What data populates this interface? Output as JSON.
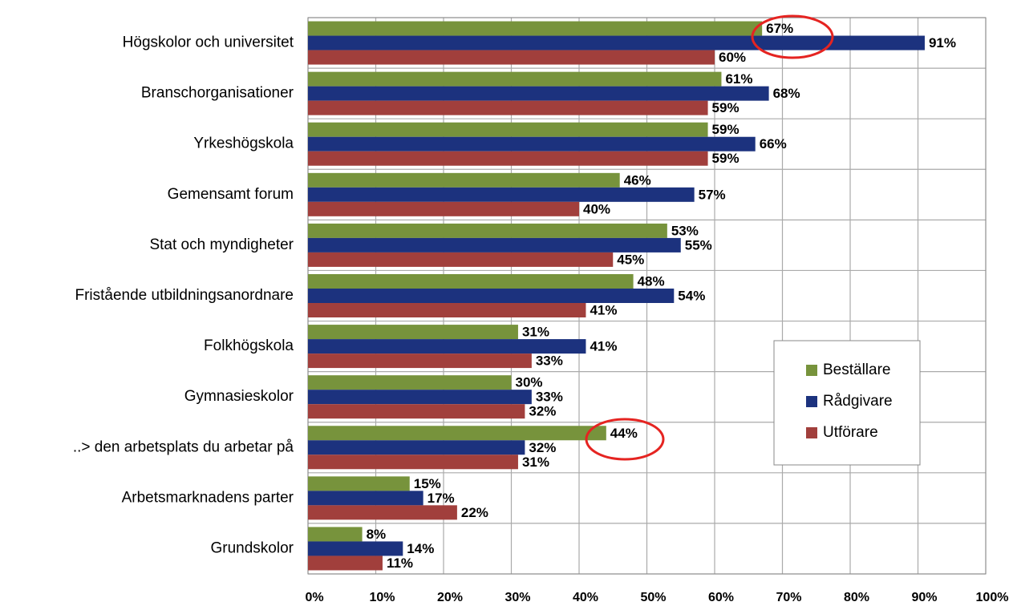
{
  "chart_data": {
    "type": "bar",
    "orientation": "horizontal",
    "categories": [
      "Högskolor och universitet",
      "Branschorganisationer",
      "Yrkeshögskola",
      "Gemensamt forum",
      "Stat och myndigheter",
      "Fristående utbildningsanordnare",
      "Folkhögskola",
      "Gymnasieskolor",
      "..> den arbetsplats du arbetar på",
      "Arbetsmarknadens parter",
      "Grundskolor"
    ],
    "series": [
      {
        "name": "Beställare",
        "color": "#77933c",
        "values": [
          67,
          61,
          59,
          46,
          53,
          48,
          31,
          30,
          44,
          15,
          8
        ],
        "value_labels": [
          "67%",
          "61%",
          "59%",
          "46%",
          "53%",
          "48%",
          "31%",
          "30%",
          "44%",
          "15%",
          "8%"
        ]
      },
      {
        "name": "Rådgivare",
        "color": "#1c327e",
        "values": [
          91,
          68,
          66,
          57,
          55,
          54,
          41,
          33,
          32,
          17,
          14
        ],
        "value_labels": [
          "91%",
          "68%",
          "66%",
          "57%",
          "55%",
          "54%",
          "41%",
          "33%",
          "32%",
          "17%",
          "14%"
        ]
      },
      {
        "name": "Utförare",
        "color": "#a13f3c",
        "values": [
          60,
          59,
          59,
          40,
          45,
          41,
          33,
          32,
          31,
          22,
          11
        ],
        "value_labels": [
          "60%",
          "59%",
          "59%",
          "40%",
          "45%",
          "41%",
          "33%",
          "32%",
          "31%",
          "22%",
          "11%"
        ]
      }
    ],
    "xlim": [
      0,
      100
    ],
    "xticks": [
      {
        "value": 0,
        "label": "0%"
      },
      {
        "value": 10,
        "label": "10%"
      },
      {
        "value": 20,
        "label": "20%"
      },
      {
        "value": 30,
        "label": "30%"
      },
      {
        "value": 40,
        "label": "40%"
      },
      {
        "value": 50,
        "label": "50%"
      },
      {
        "value": 60,
        "label": "60%"
      },
      {
        "value": 70,
        "label": "70%"
      },
      {
        "value": 80,
        "label": "80%"
      },
      {
        "value": 90,
        "label": "90%"
      },
      {
        "value": 100,
        "label": "100%"
      }
    ],
    "grid": true,
    "legend": "right"
  }
}
